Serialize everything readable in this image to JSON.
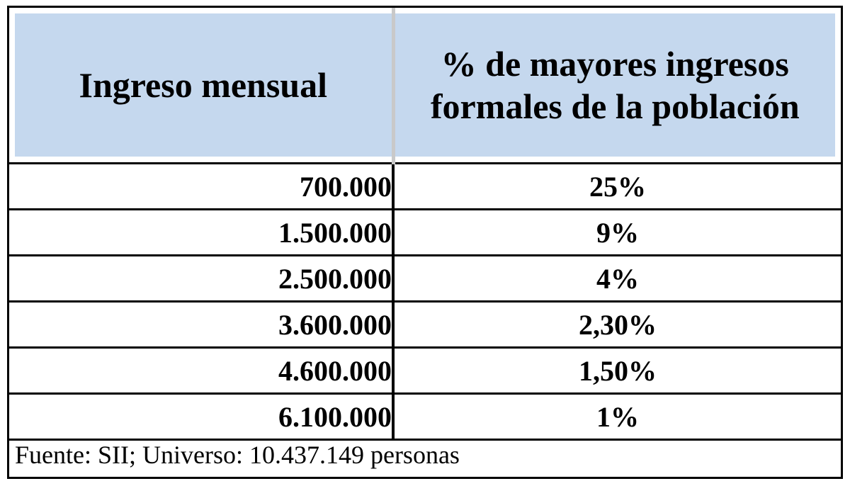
{
  "table": {
    "headers": [
      "Ingreso mensual",
      "% de mayores ingresos formales de la población"
    ],
    "rows": [
      [
        "700.000",
        "25%"
      ],
      [
        "1.500.000",
        "9%"
      ],
      [
        "2.500.000",
        "4%"
      ],
      [
        "3.600.000",
        "2,30%"
      ],
      [
        "4.600.000",
        "1,50%"
      ],
      [
        "6.100.000",
        "1%"
      ]
    ],
    "header_fill_color": "#c5d8ee"
  },
  "footer": {
    "source": "Fuente: SII; Universo: 10.437.149 personas"
  }
}
